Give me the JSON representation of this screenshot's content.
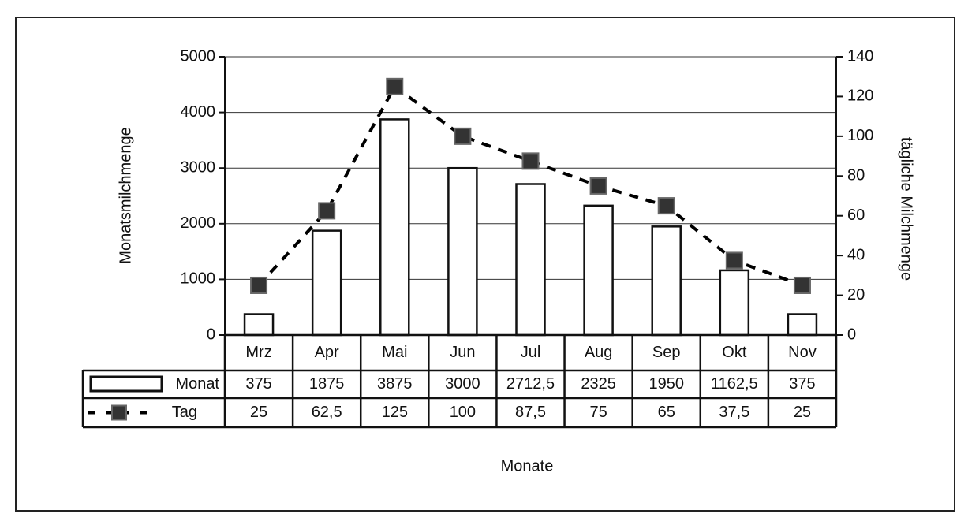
{
  "chart_data": {
    "type": "bar-line",
    "xlabel": "Monate",
    "ylabel": "Monatsmilchmenge",
    "y2label": "tägliche Milchmenge",
    "categories": [
      "Mrz",
      "Apr",
      "Mai",
      "Jun",
      "Jul",
      "Aug",
      "Sep",
      "Okt",
      "Nov"
    ],
    "series": [
      {
        "name": "Monat",
        "type": "bar",
        "color": "#ffffff",
        "values": [
          375,
          1875,
          3875,
          3000,
          2712.5,
          2325,
          1950,
          1162.5,
          375
        ],
        "value_labels": [
          "375",
          "1875",
          "3875",
          "3000",
          "2712,5",
          "2325",
          "1950",
          "1162,5",
          "375"
        ]
      },
      {
        "name": "Tag",
        "type": "line",
        "axis": "y2",
        "color": "#000000",
        "values": [
          25,
          62.5,
          125,
          100,
          87.5,
          75,
          65,
          37.5,
          25
        ],
        "value_labels": [
          "25",
          "62,5",
          "125",
          "100",
          "87,5",
          "75",
          "65",
          "37,5",
          "25"
        ]
      }
    ],
    "ylim": [
      0,
      5000
    ],
    "yticks": [
      0,
      1000,
      2000,
      3000,
      4000,
      5000
    ],
    "y2lim": [
      0,
      140
    ],
    "y2ticks": [
      0,
      20,
      40,
      60,
      80,
      100,
      120,
      140
    ],
    "grid": true
  }
}
